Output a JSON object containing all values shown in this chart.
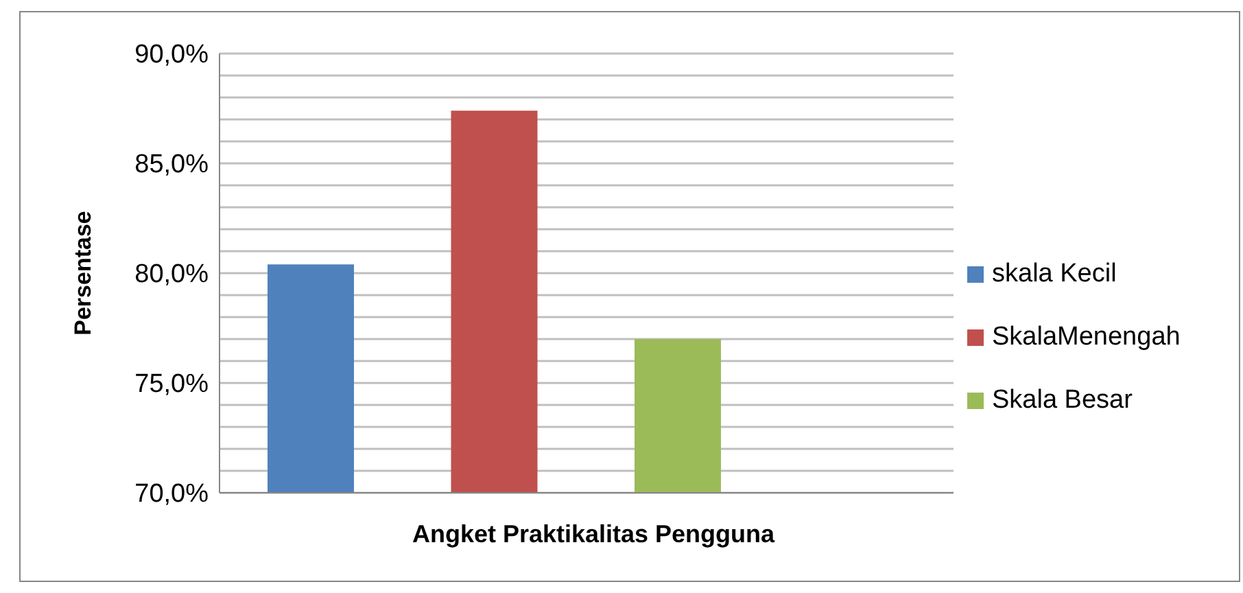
{
  "chart_data": {
    "type": "bar",
    "xlabel": "Angket Praktikalitas Pengguna",
    "ylabel": "Persentase",
    "categories": [
      null,
      null,
      null,
      null
    ],
    "series": [
      {
        "name": "skala Kecil",
        "color": "#4f81bd",
        "values": [
          80.4,
          null,
          null,
          null
        ]
      },
      {
        "name": "SkalaMenengah",
        "color": "#c0504d",
        "values": [
          null,
          87.4,
          null,
          null
        ]
      },
      {
        "name": "Skala Besar",
        "color": "#9bbb59",
        "values": [
          null,
          null,
          77.0,
          null
        ]
      }
    ],
    "ylim": [
      70,
      90
    ],
    "yticks": [
      {
        "value": 70,
        "label": "70,0%"
      },
      {
        "value": 71,
        "label": null
      },
      {
        "value": 72,
        "label": null
      },
      {
        "value": 73,
        "label": null
      },
      {
        "value": 74,
        "label": null
      },
      {
        "value": 75,
        "label": "75,0%"
      },
      {
        "value": 76,
        "label": null
      },
      {
        "value": 77,
        "label": null
      },
      {
        "value": 78,
        "label": null
      },
      {
        "value": 79,
        "label": null
      },
      {
        "value": 80,
        "label": "80,0%"
      },
      {
        "value": 81,
        "label": null
      },
      {
        "value": 82,
        "label": null
      },
      {
        "value": 83,
        "label": null
      },
      {
        "value": 84,
        "label": null
      },
      {
        "value": 85,
        "label": "85,0%"
      },
      {
        "value": 86,
        "label": null
      },
      {
        "value": 87,
        "label": null
      },
      {
        "value": 88,
        "label": null
      },
      {
        "value": 89,
        "label": null
      },
      {
        "value": 90,
        "label": "90,0%"
      }
    ],
    "grid": "y",
    "legend": "right"
  }
}
